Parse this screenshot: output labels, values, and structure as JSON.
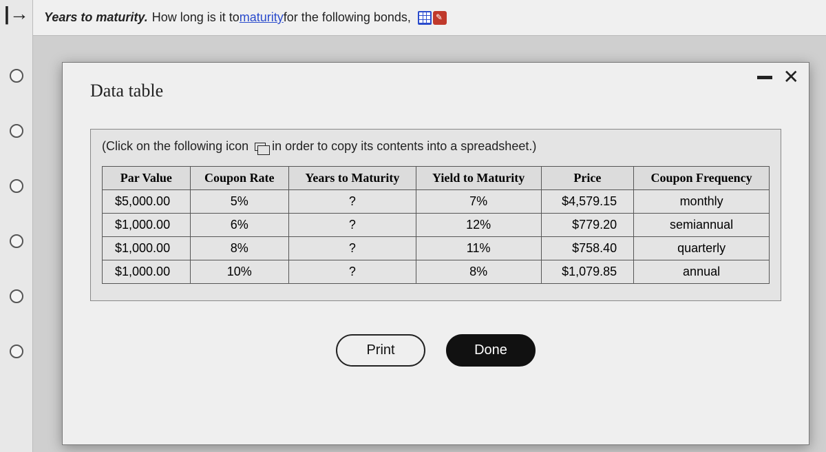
{
  "question": {
    "prefix": "Years to maturity.",
    "text_before_link": " How long is it to ",
    "link_word": "maturity",
    "text_after_link": " for the following bonds, "
  },
  "modal": {
    "title": "Data table",
    "instruction_a": "(Click on the following icon ",
    "instruction_b": " in order to copy its contents into a spreadsheet.)",
    "print_label": "Print",
    "done_label": "Done"
  },
  "table": {
    "columns": [
      "Par Value",
      "Coupon Rate",
      "Years to Maturity",
      "Yield to Maturity",
      "Price",
      "Coupon Frequency"
    ],
    "rows": [
      [
        "$5,000.00",
        "5%",
        "?",
        "7%",
        "$4,579.15",
        "monthly"
      ],
      [
        "$1,000.00",
        "6%",
        "?",
        "12%",
        "$779.20",
        "semiannual"
      ],
      [
        "$1,000.00",
        "8%",
        "?",
        "11%",
        "$758.40",
        "quarterly"
      ],
      [
        "$1,000.00",
        "10%",
        "?",
        "8%",
        "$1,079.85",
        "annual"
      ]
    ]
  }
}
